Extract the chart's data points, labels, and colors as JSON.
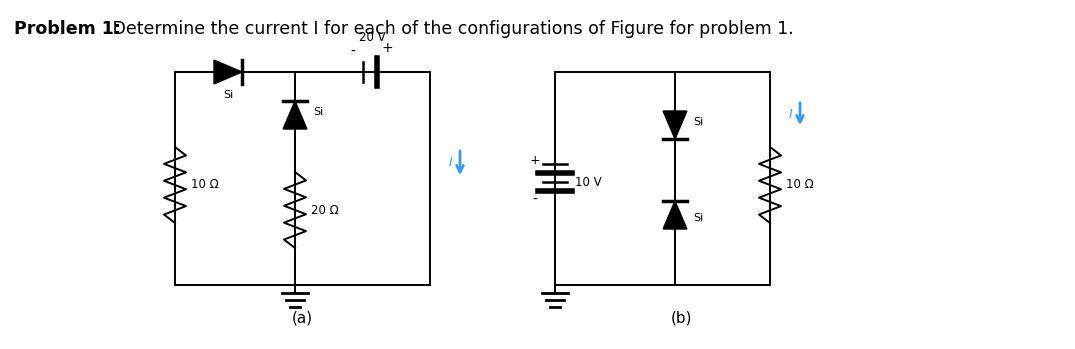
{
  "title_bold": "Problem 1:",
  "title_regular": " Determine the current I for each of the configurations of Figure for problem 1.",
  "title_fontsize": 12.5,
  "bg_color": "#ffffff",
  "circuit_color": "#000000",
  "current_arrow_color": "#3399ff",
  "fig_width": 10.75,
  "fig_height": 3.49,
  "label_a": "(a)",
  "label_b": "(b)",
  "voltage_a": "20 V",
  "voltage_b": "10 V",
  "resistor_a1": "10 Ω",
  "resistor_a2": "20 Ω",
  "resistor_b": "10 Ω",
  "si_label": "Si"
}
